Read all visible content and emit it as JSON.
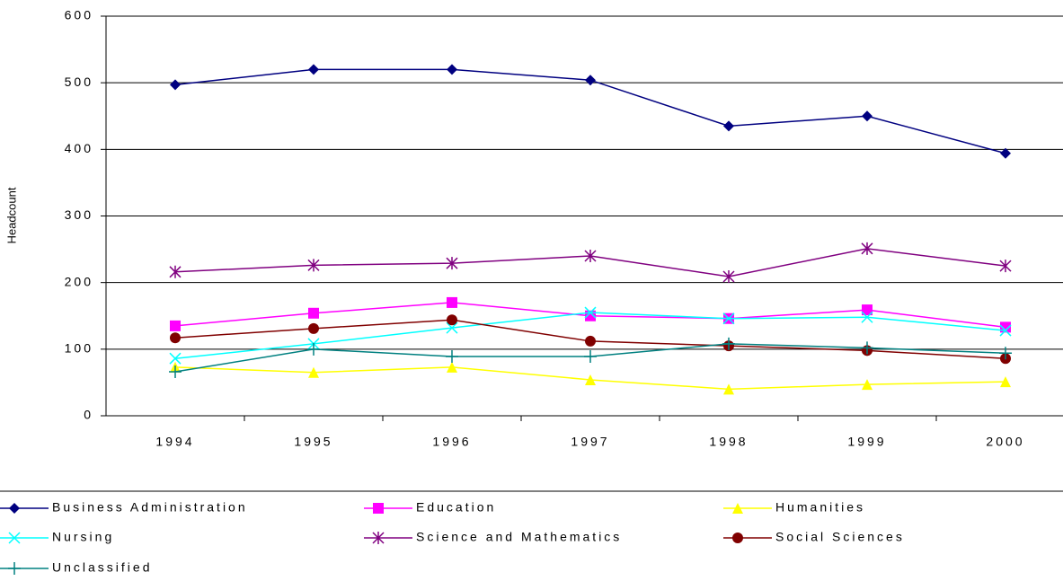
{
  "chart_data": {
    "type": "line",
    "y_label": "Headcount",
    "categories": [
      "1994",
      "1995",
      "1996",
      "1997",
      "1998",
      "1999",
      "2000"
    ],
    "ylim": [
      0,
      600
    ],
    "yticks": [
      0,
      100,
      200,
      300,
      400,
      500,
      600
    ],
    "grid": true,
    "series": [
      {
        "name": "Business Administration",
        "color": "#000080",
        "marker": "diamond",
        "values": [
          497,
          520,
          520,
          504,
          435,
          450,
          394
        ]
      },
      {
        "name": "Education",
        "color": "#ff00ff",
        "marker": "square",
        "values": [
          135,
          154,
          170,
          150,
          146,
          159,
          133
        ]
      },
      {
        "name": "Humanities",
        "color": "#ffff00",
        "marker": "triangle",
        "values": [
          73,
          65,
          73,
          54,
          40,
          47,
          51
        ]
      },
      {
        "name": "Nursing",
        "color": "#00ffff",
        "marker": "x",
        "values": [
          86,
          108,
          132,
          155,
          146,
          148,
          128
        ]
      },
      {
        "name": "Science and Mathematics",
        "color": "#800080",
        "marker": "star",
        "values": [
          216,
          226,
          229,
          240,
          209,
          251,
          225
        ]
      },
      {
        "name": "Social Sciences",
        "color": "#800000",
        "marker": "circle",
        "values": [
          117,
          131,
          144,
          112,
          105,
          98,
          86
        ]
      },
      {
        "name": "Unclassified",
        "color": "#008080",
        "marker": "plus",
        "values": [
          66,
          100,
          89,
          89,
          108,
          102,
          94
        ]
      }
    ]
  }
}
